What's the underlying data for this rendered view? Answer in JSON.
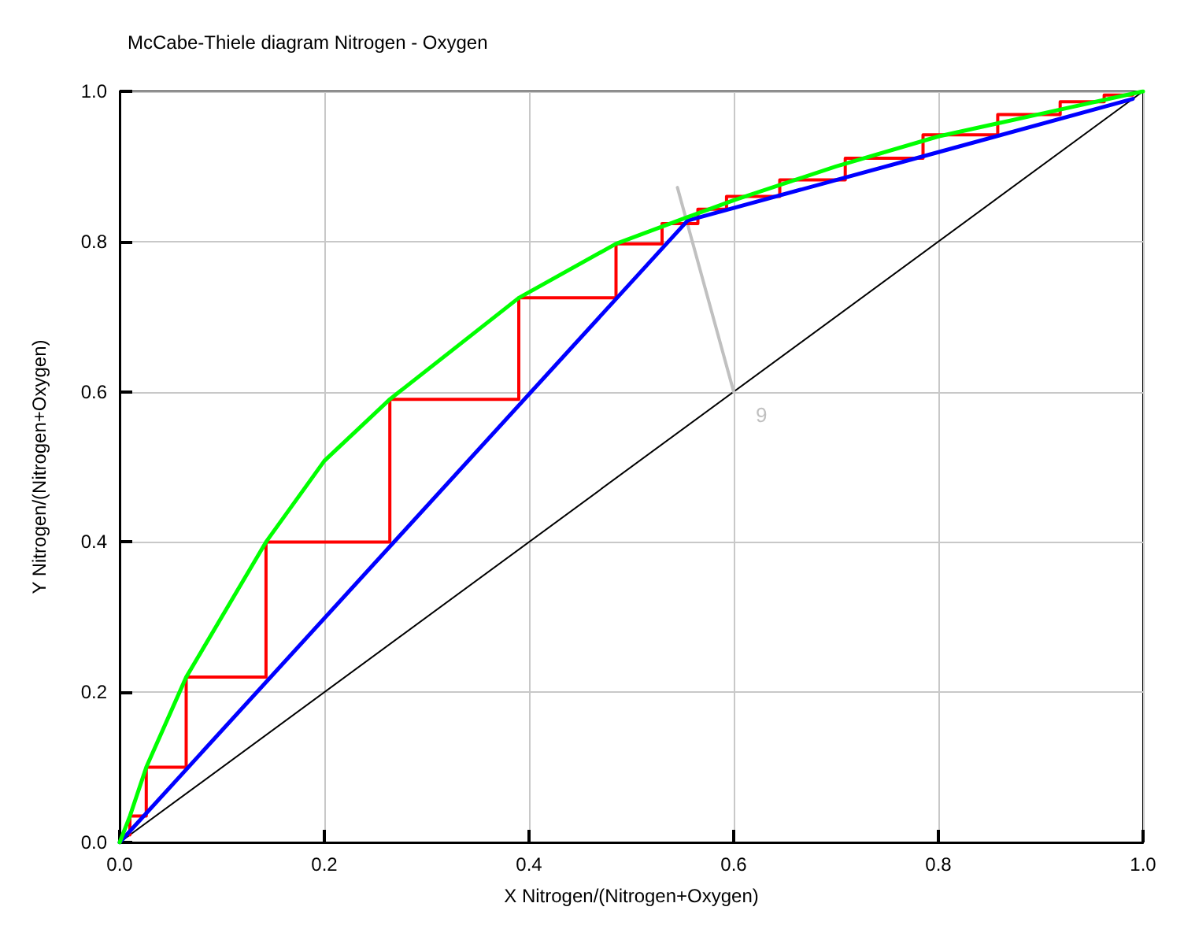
{
  "chart_data": {
    "type": "line",
    "title": "McCabe-Thiele diagram Nitrogen - Oxygen",
    "xlabel": "X Nitrogen/(Nitrogen+Oxygen)",
    "ylabel": "Y Nitrogen/(Nitrogen+Oxygen)",
    "xlim": [
      0,
      1
    ],
    "ylim": [
      0,
      1
    ],
    "xticks": [
      {
        "value": 0,
        "label": "0.0"
      },
      {
        "value": 0.2,
        "label": "0.2"
      },
      {
        "value": 0.4,
        "label": "0.4"
      },
      {
        "value": 0.6,
        "label": "0.6"
      },
      {
        "value": 0.8,
        "label": "0.8"
      },
      {
        "value": 1,
        "label": "1.0"
      }
    ],
    "yticks": [
      {
        "value": 0,
        "label": "0.0"
      },
      {
        "value": 0.2,
        "label": "0.2"
      },
      {
        "value": 0.4,
        "label": "0.4"
      },
      {
        "value": 0.6,
        "label": "0.6"
      },
      {
        "value": 0.8,
        "label": "0.8"
      },
      {
        "value": 1,
        "label": "1.0"
      }
    ],
    "grid": true,
    "marker": "none",
    "line_style": "solid",
    "series": [
      {
        "color": "#000000",
        "x": [
          0,
          1
        ],
        "values": [
          0,
          1
        ]
      },
      {
        "color": "#c0c0c0",
        "x": [
          0.545,
          0.6
        ],
        "values": [
          0.872,
          0.6
        ]
      },
      {
        "color": "#ff0000",
        "x": [
          0.01,
          0.01,
          0.026,
          0.026,
          0.065,
          0.065,
          0.143,
          0.143,
          0.264,
          0.264,
          0.39,
          0.39,
          0.485,
          0.485,
          0.53,
          0.53,
          0.565,
          0.565,
          0.593,
          0.593,
          0.645,
          0.645,
          0.709,
          0.709,
          0.785,
          0.785,
          0.858,
          0.858,
          0.919,
          0.919,
          0.962,
          0.962,
          0.99
        ],
        "values": [
          0.01,
          0.035,
          0.035,
          0.1,
          0.1,
          0.22,
          0.22,
          0.4,
          0.4,
          0.59,
          0.59,
          0.725,
          0.725,
          0.797,
          0.797,
          0.824,
          0.824,
          0.843,
          0.843,
          0.86,
          0.86,
          0.882,
          0.882,
          0.911,
          0.911,
          0.942,
          0.942,
          0.969,
          0.969,
          0.986,
          0.986,
          0.995,
          0.995
        ]
      },
      {
        "color": "#0000ff",
        "x": [
          0,
          0.555,
          0.8,
          0.99
        ],
        "values": [
          0,
          0.828,
          0.919,
          0.99
        ]
      },
      {
        "color": "#00ff00",
        "x": [
          0,
          0.01,
          0.026,
          0.065,
          0.143,
          0.2,
          0.264,
          0.39,
          0.485,
          0.55,
          0.6,
          0.7,
          0.8,
          0.9,
          1
        ],
        "values": [
          0,
          0.035,
          0.1,
          0.22,
          0.4,
          0.508,
          0.59,
          0.725,
          0.797,
          0.83,
          0.855,
          0.9,
          0.94,
          0.97,
          1
        ]
      }
    ],
    "annotations": [
      {
        "text": "9",
        "x": 0.6,
        "y": 0.6
      }
    ]
  }
}
